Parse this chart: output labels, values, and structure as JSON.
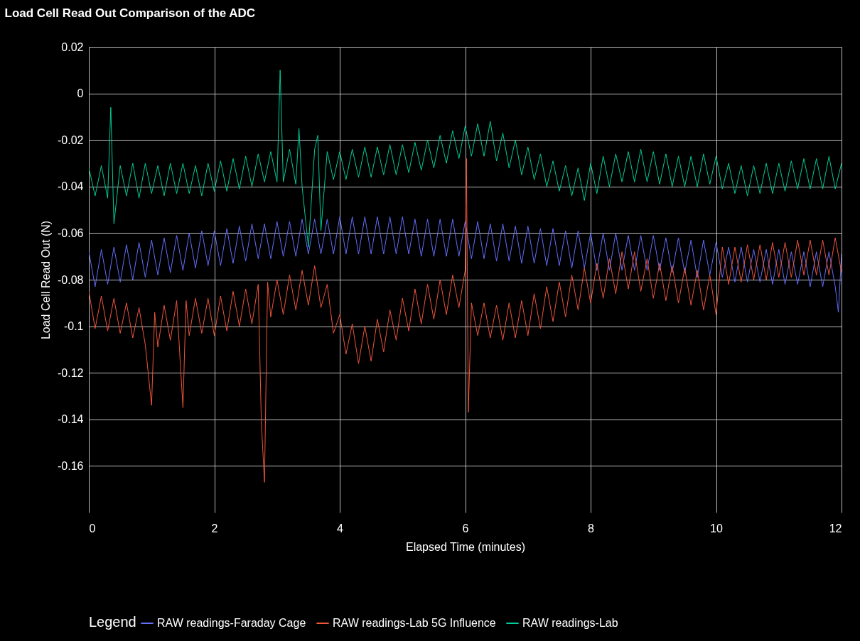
{
  "chart_data": {
    "type": "line",
    "title": "Load Cell Read Out Comparison of the ADC",
    "xlabel": "Elapsed Time (minutes)",
    "ylabel": "Load Cell Read Out (N)",
    "legend_title": "Legend",
    "legend": "bottom",
    "grid": true,
    "xlim": [
      0,
      12
    ],
    "xticks": [
      0,
      2,
      4,
      6,
      8,
      10,
      12
    ],
    "ylim": [
      -0.18,
      0.02
    ],
    "yticks": [
      -0.16,
      -0.14,
      -0.12,
      -0.1,
      -0.08,
      -0.06,
      -0.04,
      -0.02,
      0,
      0.02
    ],
    "series": [
      {
        "name": "RAW readings-Faraday Cage",
        "color": "#636efa",
        "x": [
          0,
          0.1,
          0.2,
          0.3,
          0.4,
          0.5,
          0.6,
          0.7,
          0.8,
          0.9,
          1.0,
          1.1,
          1.2,
          1.3,
          1.4,
          1.5,
          1.6,
          1.7,
          1.8,
          1.9,
          2.0,
          2.1,
          2.2,
          2.3,
          2.4,
          2.5,
          2.6,
          2.7,
          2.8,
          2.9,
          3.0,
          3.1,
          3.2,
          3.3,
          3.4,
          3.5,
          3.6,
          3.7,
          3.8,
          3.9,
          4.0,
          4.1,
          4.2,
          4.3,
          4.4,
          4.5,
          4.6,
          4.7,
          4.8,
          4.9,
          5.0,
          5.1,
          5.2,
          5.3,
          5.4,
          5.5,
          5.6,
          5.7,
          5.8,
          5.9,
          6.0,
          6.1,
          6.2,
          6.3,
          6.4,
          6.5,
          6.6,
          6.7,
          6.8,
          6.9,
          7.0,
          7.1,
          7.2,
          7.3,
          7.4,
          7.5,
          7.6,
          7.7,
          7.8,
          7.9,
          8.0,
          8.1,
          8.2,
          8.3,
          8.4,
          8.5,
          8.6,
          8.7,
          8.8,
          8.9,
          9.0,
          9.1,
          9.2,
          9.3,
          9.4,
          9.5,
          9.6,
          9.7,
          9.8,
          9.9,
          10.0,
          10.1,
          10.2,
          10.3,
          10.4,
          10.5,
          10.6,
          10.7,
          10.8,
          10.9,
          11.0,
          11.1,
          11.2,
          11.3,
          11.4,
          11.5,
          11.6,
          11.7,
          11.8,
          11.9,
          11.95,
          12.0
        ],
        "values": [
          -0.068,
          -0.083,
          -0.067,
          -0.082,
          -0.066,
          -0.081,
          -0.065,
          -0.08,
          -0.064,
          -0.079,
          -0.063,
          -0.078,
          -0.062,
          -0.077,
          -0.061,
          -0.076,
          -0.06,
          -0.075,
          -0.059,
          -0.074,
          -0.059,
          -0.074,
          -0.058,
          -0.073,
          -0.057,
          -0.072,
          -0.056,
          -0.071,
          -0.056,
          -0.071,
          -0.055,
          -0.07,
          -0.055,
          -0.07,
          -0.054,
          -0.069,
          -0.054,
          -0.069,
          -0.054,
          -0.069,
          -0.053,
          -0.069,
          -0.053,
          -0.069,
          -0.053,
          -0.069,
          -0.053,
          -0.069,
          -0.053,
          -0.069,
          -0.053,
          -0.069,
          -0.054,
          -0.07,
          -0.054,
          -0.07,
          -0.054,
          -0.07,
          -0.054,
          -0.07,
          -0.055,
          -0.071,
          -0.055,
          -0.071,
          -0.056,
          -0.072,
          -0.056,
          -0.072,
          -0.057,
          -0.073,
          -0.057,
          -0.073,
          -0.058,
          -0.074,
          -0.058,
          -0.074,
          -0.059,
          -0.075,
          -0.059,
          -0.075,
          -0.06,
          -0.076,
          -0.06,
          -0.076,
          -0.06,
          -0.076,
          -0.061,
          -0.076,
          -0.061,
          -0.076,
          -0.061,
          -0.076,
          -0.062,
          -0.077,
          -0.062,
          -0.077,
          -0.063,
          -0.079,
          -0.063,
          -0.078,
          -0.064,
          -0.079,
          -0.066,
          -0.081,
          -0.066,
          -0.081,
          -0.067,
          -0.081,
          -0.067,
          -0.082,
          -0.067,
          -0.082,
          -0.068,
          -0.082,
          -0.068,
          -0.083,
          -0.068,
          -0.083,
          -0.068,
          -0.083,
          -0.094,
          -0.069
        ]
      },
      {
        "name": "RAW readings-Lab 5G Influence",
        "color": "#ef553b",
        "x": [
          0,
          0.1,
          0.2,
          0.3,
          0.4,
          0.5,
          0.6,
          0.7,
          0.8,
          0.9,
          1.0,
          1.05,
          1.1,
          1.2,
          1.3,
          1.4,
          1.5,
          1.55,
          1.6,
          1.7,
          1.8,
          1.9,
          2.0,
          2.1,
          2.2,
          2.3,
          2.4,
          2.5,
          2.6,
          2.7,
          2.75,
          2.8,
          2.85,
          2.9,
          3.0,
          3.1,
          3.2,
          3.3,
          3.4,
          3.5,
          3.6,
          3.7,
          3.8,
          3.9,
          4.0,
          4.1,
          4.2,
          4.3,
          4.4,
          4.5,
          4.6,
          4.7,
          4.8,
          4.9,
          5.0,
          5.1,
          5.2,
          5.3,
          5.4,
          5.5,
          5.6,
          5.7,
          5.8,
          5.9,
          6.0,
          6.02,
          6.05,
          6.1,
          6.2,
          6.3,
          6.4,
          6.5,
          6.6,
          6.7,
          6.8,
          6.9,
          7.0,
          7.1,
          7.2,
          7.3,
          7.4,
          7.5,
          7.6,
          7.7,
          7.8,
          7.9,
          8.0,
          8.1,
          8.2,
          8.3,
          8.4,
          8.5,
          8.6,
          8.7,
          8.8,
          8.9,
          9.0,
          9.1,
          9.2,
          9.3,
          9.4,
          9.5,
          9.6,
          9.7,
          9.8,
          9.9,
          10.0,
          10.1,
          10.2,
          10.3,
          10.4,
          10.5,
          10.6,
          10.7,
          10.8,
          10.9,
          11.0,
          11.1,
          11.2,
          11.3,
          11.4,
          11.5,
          11.6,
          11.7,
          11.8,
          11.9,
          12.0
        ],
        "values": [
          -0.085,
          -0.101,
          -0.087,
          -0.102,
          -0.088,
          -0.103,
          -0.09,
          -0.105,
          -0.092,
          -0.108,
          -0.134,
          -0.094,
          -0.109,
          -0.091,
          -0.106,
          -0.089,
          -0.135,
          -0.089,
          -0.104,
          -0.088,
          -0.103,
          -0.088,
          -0.104,
          -0.087,
          -0.102,
          -0.085,
          -0.1,
          -0.084,
          -0.099,
          -0.082,
          -0.141,
          -0.167,
          -0.081,
          -0.096,
          -0.08,
          -0.095,
          -0.078,
          -0.093,
          -0.076,
          -0.091,
          -0.074,
          -0.092,
          -0.082,
          -0.103,
          -0.095,
          -0.112,
          -0.099,
          -0.116,
          -0.1,
          -0.115,
          -0.097,
          -0.111,
          -0.093,
          -0.106,
          -0.088,
          -0.102,
          -0.084,
          -0.099,
          -0.082,
          -0.097,
          -0.08,
          -0.095,
          -0.078,
          -0.092,
          -0.076,
          -0.028,
          -0.137,
          -0.09,
          -0.104,
          -0.09,
          -0.105,
          -0.091,
          -0.106,
          -0.09,
          -0.105,
          -0.089,
          -0.104,
          -0.086,
          -0.101,
          -0.083,
          -0.098,
          -0.081,
          -0.096,
          -0.078,
          -0.093,
          -0.075,
          -0.09,
          -0.073,
          -0.088,
          -0.071,
          -0.086,
          -0.068,
          -0.084,
          -0.068,
          -0.085,
          -0.071,
          -0.088,
          -0.073,
          -0.089,
          -0.074,
          -0.09,
          -0.075,
          -0.091,
          -0.076,
          -0.093,
          -0.078,
          -0.095,
          -0.066,
          -0.082,
          -0.066,
          -0.081,
          -0.065,
          -0.08,
          -0.065,
          -0.08,
          -0.064,
          -0.079,
          -0.064,
          -0.079,
          -0.063,
          -0.078,
          -0.063,
          -0.078,
          -0.063,
          -0.078,
          -0.062,
          -0.077
        ]
      },
      {
        "name": "RAW readings-Lab",
        "color": "#00cc96",
        "x": [
          0,
          0.1,
          0.2,
          0.3,
          0.35,
          0.4,
          0.5,
          0.6,
          0.7,
          0.8,
          0.9,
          1.0,
          1.1,
          1.2,
          1.3,
          1.4,
          1.5,
          1.6,
          1.7,
          1.8,
          1.9,
          2.0,
          2.1,
          2.2,
          2.3,
          2.4,
          2.5,
          2.6,
          2.7,
          2.8,
          2.9,
          3.0,
          3.05,
          3.1,
          3.2,
          3.3,
          3.35,
          3.4,
          3.5,
          3.6,
          3.65,
          3.7,
          3.8,
          3.9,
          4.0,
          4.1,
          4.2,
          4.3,
          4.4,
          4.5,
          4.6,
          4.7,
          4.8,
          4.9,
          5.0,
          5.1,
          5.2,
          5.3,
          5.4,
          5.5,
          5.6,
          5.7,
          5.8,
          5.9,
          6.0,
          6.1,
          6.2,
          6.3,
          6.4,
          6.5,
          6.6,
          6.7,
          6.8,
          6.9,
          7.0,
          7.1,
          7.2,
          7.3,
          7.4,
          7.5,
          7.6,
          7.7,
          7.8,
          7.9,
          8.0,
          8.1,
          8.2,
          8.3,
          8.4,
          8.5,
          8.6,
          8.7,
          8.8,
          8.9,
          9.0,
          9.1,
          9.2,
          9.3,
          9.4,
          9.5,
          9.6,
          9.7,
          9.8,
          9.9,
          10.0,
          10.1,
          10.2,
          10.3,
          10.4,
          10.5,
          10.6,
          10.7,
          10.8,
          10.9,
          11.0,
          11.1,
          11.2,
          11.3,
          11.4,
          11.5,
          11.6,
          11.7,
          11.8,
          11.9,
          12.0
        ],
        "values": [
          -0.032,
          -0.044,
          -0.031,
          -0.045,
          -0.006,
          -0.056,
          -0.031,
          -0.044,
          -0.03,
          -0.045,
          -0.03,
          -0.043,
          -0.031,
          -0.044,
          -0.03,
          -0.043,
          -0.03,
          -0.043,
          -0.031,
          -0.044,
          -0.03,
          -0.042,
          -0.029,
          -0.042,
          -0.028,
          -0.041,
          -0.027,
          -0.04,
          -0.026,
          -0.038,
          -0.025,
          -0.038,
          0.01,
          -0.038,
          -0.024,
          -0.039,
          -0.015,
          -0.04,
          -0.066,
          -0.024,
          -0.018,
          -0.059,
          -0.025,
          -0.037,
          -0.025,
          -0.037,
          -0.024,
          -0.036,
          -0.023,
          -0.036,
          -0.023,
          -0.035,
          -0.022,
          -0.035,
          -0.022,
          -0.034,
          -0.021,
          -0.033,
          -0.02,
          -0.032,
          -0.018,
          -0.03,
          -0.016,
          -0.028,
          -0.014,
          -0.027,
          -0.013,
          -0.027,
          -0.012,
          -0.029,
          -0.017,
          -0.032,
          -0.02,
          -0.035,
          -0.023,
          -0.037,
          -0.026,
          -0.04,
          -0.029,
          -0.042,
          -0.031,
          -0.044,
          -0.032,
          -0.046,
          -0.03,
          -0.043,
          -0.027,
          -0.04,
          -0.026,
          -0.038,
          -0.025,
          -0.038,
          -0.024,
          -0.038,
          -0.025,
          -0.039,
          -0.026,
          -0.04,
          -0.027,
          -0.04,
          -0.027,
          -0.04,
          -0.026,
          -0.039,
          -0.027,
          -0.041,
          -0.03,
          -0.043,
          -0.031,
          -0.044,
          -0.031,
          -0.043,
          -0.03,
          -0.043,
          -0.03,
          -0.042,
          -0.029,
          -0.041,
          -0.028,
          -0.041,
          -0.028,
          -0.041,
          -0.027,
          -0.041,
          -0.03
        ]
      }
    ]
  }
}
